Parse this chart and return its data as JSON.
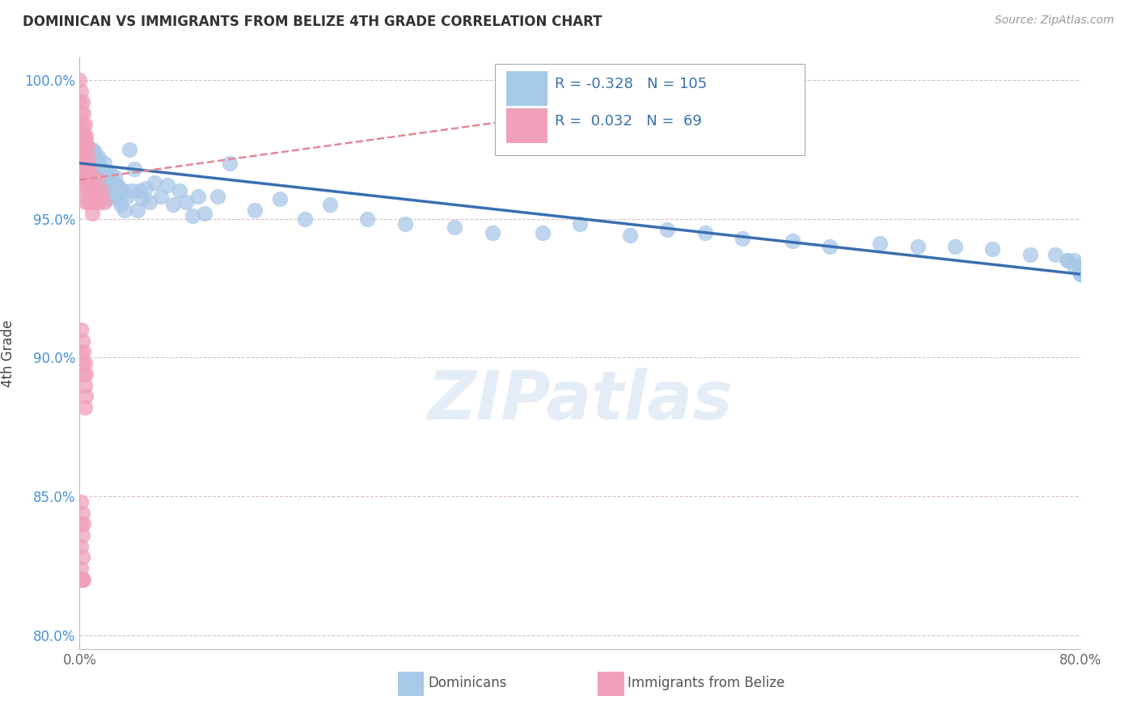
{
  "title": "DOMINICAN VS IMMIGRANTS FROM BELIZE 4TH GRADE CORRELATION CHART",
  "source": "Source: ZipAtlas.com",
  "xlabel_blue": "Dominicans",
  "xlabel_pink": "Immigrants from Belize",
  "ylabel": "4th Grade",
  "xlim": [
    0.0,
    0.8
  ],
  "ylim": [
    0.795,
    1.008
  ],
  "xtick_vals": [
    0.0,
    0.1,
    0.2,
    0.3,
    0.4,
    0.5,
    0.6,
    0.7,
    0.8
  ],
  "xtick_labels": [
    "0.0%",
    "",
    "",
    "",
    "",
    "",
    "",
    "",
    "80.0%"
  ],
  "ytick_vals": [
    0.8,
    0.85,
    0.9,
    0.95,
    1.0
  ],
  "ytick_labels": [
    "80.0%",
    "85.0%",
    "90.0%",
    "95.0%",
    "100.0%"
  ],
  "blue_R": -0.328,
  "blue_N": 105,
  "pink_R": 0.032,
  "pink_N": 69,
  "blue_color": "#a8c8e8",
  "pink_color": "#f0a0b8",
  "blue_line_color": "#3a6faf",
  "pink_line_color": "#e08898",
  "grid_color": "#d8c0c8",
  "watermark": "ZIPatlas",
  "blue_scatter_x": [
    0.003,
    0.003,
    0.004,
    0.004,
    0.005,
    0.005,
    0.006,
    0.006,
    0.007,
    0.007,
    0.008,
    0.008,
    0.009,
    0.009,
    0.01,
    0.01,
    0.01,
    0.011,
    0.011,
    0.012,
    0.012,
    0.012,
    0.013,
    0.013,
    0.014,
    0.014,
    0.015,
    0.015,
    0.016,
    0.016,
    0.017,
    0.018,
    0.019,
    0.02,
    0.02,
    0.021,
    0.022,
    0.022,
    0.023,
    0.024,
    0.025,
    0.025,
    0.026,
    0.027,
    0.028,
    0.028,
    0.03,
    0.031,
    0.032,
    0.033,
    0.035,
    0.036,
    0.038,
    0.04,
    0.042,
    0.044,
    0.046,
    0.048,
    0.05,
    0.053,
    0.056,
    0.06,
    0.065,
    0.07,
    0.075,
    0.08,
    0.085,
    0.09,
    0.095,
    0.1,
    0.11,
    0.12,
    0.14,
    0.16,
    0.18,
    0.2,
    0.23,
    0.26,
    0.3,
    0.33,
    0.37,
    0.4,
    0.44,
    0.47,
    0.5,
    0.53,
    0.57,
    0.6,
    0.64,
    0.67,
    0.7,
    0.73,
    0.76,
    0.78,
    0.79,
    0.79,
    0.795,
    0.795,
    0.8,
    0.8,
    0.8,
    0.8,
    0.8,
    0.8,
    0.8
  ],
  "blue_scatter_y": [
    0.98,
    0.972,
    0.976,
    0.968,
    0.978,
    0.97,
    0.975,
    0.967,
    0.973,
    0.966,
    0.971,
    0.964,
    0.969,
    0.962,
    0.975,
    0.968,
    0.961,
    0.972,
    0.965,
    0.974,
    0.967,
    0.96,
    0.971,
    0.964,
    0.97,
    0.963,
    0.972,
    0.965,
    0.969,
    0.962,
    0.966,
    0.968,
    0.963,
    0.97,
    0.963,
    0.967,
    0.964,
    0.957,
    0.962,
    0.958,
    0.966,
    0.959,
    0.963,
    0.958,
    0.965,
    0.958,
    0.962,
    0.957,
    0.961,
    0.955,
    0.96,
    0.953,
    0.958,
    0.975,
    0.96,
    0.968,
    0.953,
    0.96,
    0.957,
    0.961,
    0.956,
    0.963,
    0.958,
    0.962,
    0.955,
    0.96,
    0.956,
    0.951,
    0.958,
    0.952,
    0.958,
    0.97,
    0.953,
    0.957,
    0.95,
    0.955,
    0.95,
    0.948,
    0.947,
    0.945,
    0.945,
    0.948,
    0.944,
    0.946,
    0.945,
    0.943,
    0.942,
    0.94,
    0.941,
    0.94,
    0.94,
    0.939,
    0.937,
    0.937,
    0.935,
    0.935,
    0.935,
    0.933,
    0.933,
    0.932,
    0.932,
    0.931,
    0.93,
    0.93,
    0.93
  ],
  "pink_scatter_x": [
    0.0,
    0.0,
    0.0,
    0.0,
    0.001,
    0.001,
    0.001,
    0.001,
    0.002,
    0.002,
    0.002,
    0.002,
    0.003,
    0.003,
    0.003,
    0.003,
    0.004,
    0.004,
    0.004,
    0.004,
    0.005,
    0.005,
    0.005,
    0.005,
    0.006,
    0.006,
    0.006,
    0.007,
    0.007,
    0.007,
    0.008,
    0.008,
    0.009,
    0.009,
    0.01,
    0.01,
    0.011,
    0.012,
    0.013,
    0.014,
    0.016,
    0.018,
    0.02,
    0.001,
    0.001,
    0.002,
    0.002,
    0.003,
    0.003,
    0.004,
    0.004,
    0.004,
    0.005,
    0.005,
    0.001,
    0.001,
    0.002,
    0.002,
    0.003,
    0.001,
    0.001,
    0.002,
    0.001,
    0.001,
    0.001,
    0.001,
    0.002,
    0.002,
    0.003
  ],
  "pink_scatter_y": [
    1.0,
    0.992,
    0.984,
    0.976,
    0.996,
    0.988,
    0.98,
    0.972,
    0.992,
    0.984,
    0.976,
    0.968,
    0.988,
    0.98,
    0.972,
    0.964,
    0.984,
    0.976,
    0.968,
    0.96,
    0.98,
    0.972,
    0.964,
    0.956,
    0.976,
    0.968,
    0.96,
    0.972,
    0.964,
    0.956,
    0.968,
    0.96,
    0.964,
    0.956,
    0.96,
    0.952,
    0.96,
    0.956,
    0.96,
    0.964,
    0.956,
    0.96,
    0.956,
    0.91,
    0.902,
    0.906,
    0.898,
    0.902,
    0.894,
    0.898,
    0.89,
    0.882,
    0.894,
    0.886,
    0.848,
    0.84,
    0.844,
    0.836,
    0.84,
    0.832,
    0.824,
    0.828,
    0.82,
    0.82,
    0.82,
    0.82,
    0.82,
    0.82,
    0.82
  ]
}
